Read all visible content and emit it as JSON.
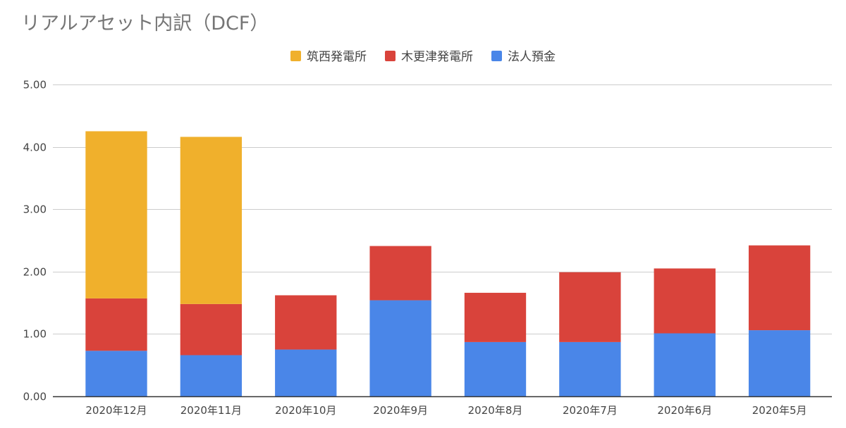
{
  "chart_data": {
    "type": "bar",
    "stacked": true,
    "title": "リアルアセット内訳（DCF）",
    "xlabel": "",
    "ylabel": "",
    "ylim": [
      0,
      5
    ],
    "y_ticks": [
      "0.00",
      "1.00",
      "2.00",
      "3.00",
      "4.00",
      "5.00"
    ],
    "grid": true,
    "legend_position": "top",
    "categories": [
      "2020年12月",
      "2020年11月",
      "2020年10月",
      "2020年9月",
      "2020年8月",
      "2020年7月",
      "2020年6月",
      "2020年5月"
    ],
    "series": [
      {
        "name": "法人預金",
        "color": "#4a86e8",
        "values": [
          0.73,
          0.66,
          0.75,
          1.54,
          0.87,
          0.87,
          1.01,
          1.06
        ]
      },
      {
        "name": "木更津発電所",
        "color": "#d9433b",
        "values": [
          0.84,
          0.82,
          0.87,
          0.87,
          0.79,
          1.12,
          1.04,
          1.36
        ]
      },
      {
        "name": "筑西発電所",
        "color": "#f0b02c",
        "values": [
          2.68,
          2.68,
          0,
          0,
          0,
          0,
          0,
          0
        ]
      }
    ],
    "legend_order": [
      "筑西発電所",
      "木更津発電所",
      "法人預金"
    ]
  }
}
